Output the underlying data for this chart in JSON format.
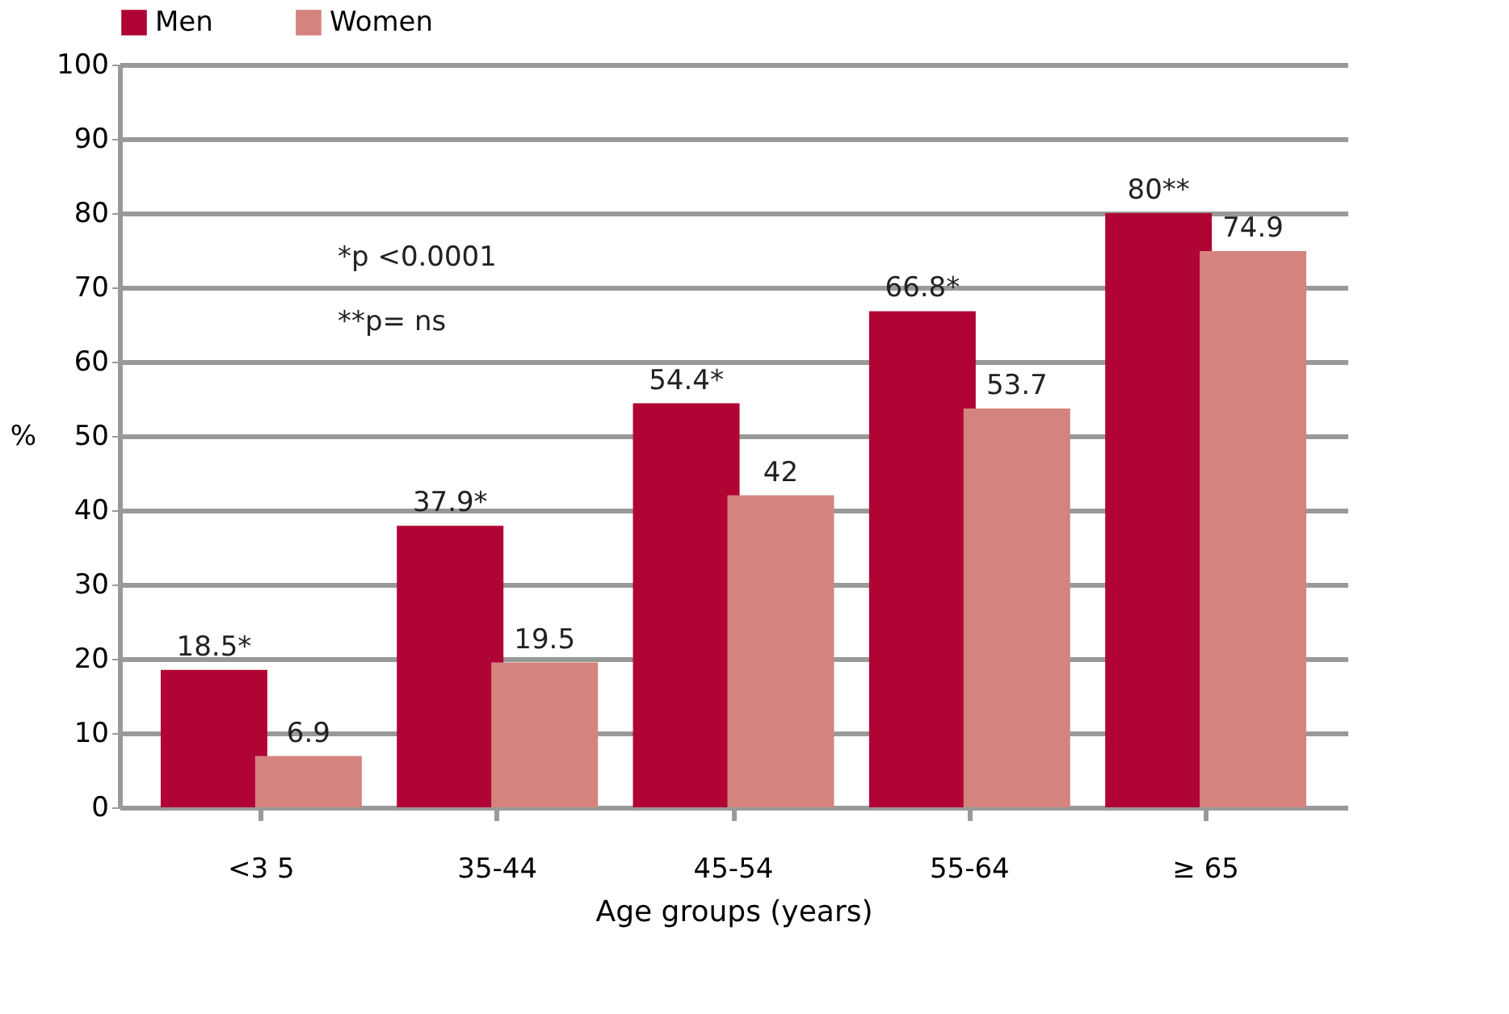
{
  "chart_data": {
    "type": "bar",
    "xlabel": "Age groups (years)",
    "ylabel": "%",
    "categories": [
      "<3 5",
      "35-44",
      "45-54",
      "55-64",
      "≥ 65"
    ],
    "series": [
      {
        "name": "Men",
        "color": "#b00434",
        "values": [
          18.5,
          37.9,
          54.4,
          66.8,
          80
        ],
        "value_labels": [
          "18.5*",
          "37.9*",
          "54.4*",
          "66.8*",
          "80**"
        ]
      },
      {
        "name": "Women",
        "color": "#d5837e",
        "values": [
          6.9,
          19.5,
          42,
          53.7,
          74.9
        ],
        "value_labels": [
          "6.9",
          "19.5",
          "42",
          "53.7",
          "74.9"
        ]
      }
    ],
    "ylim": [
      0,
      100
    ],
    "yticks": [
      0,
      10,
      20,
      30,
      40,
      50,
      60,
      70,
      80,
      90,
      100
    ],
    "grid": "y",
    "legend": "top",
    "annotations": [
      "*p <0.0001",
      "**p=  ns"
    ]
  }
}
